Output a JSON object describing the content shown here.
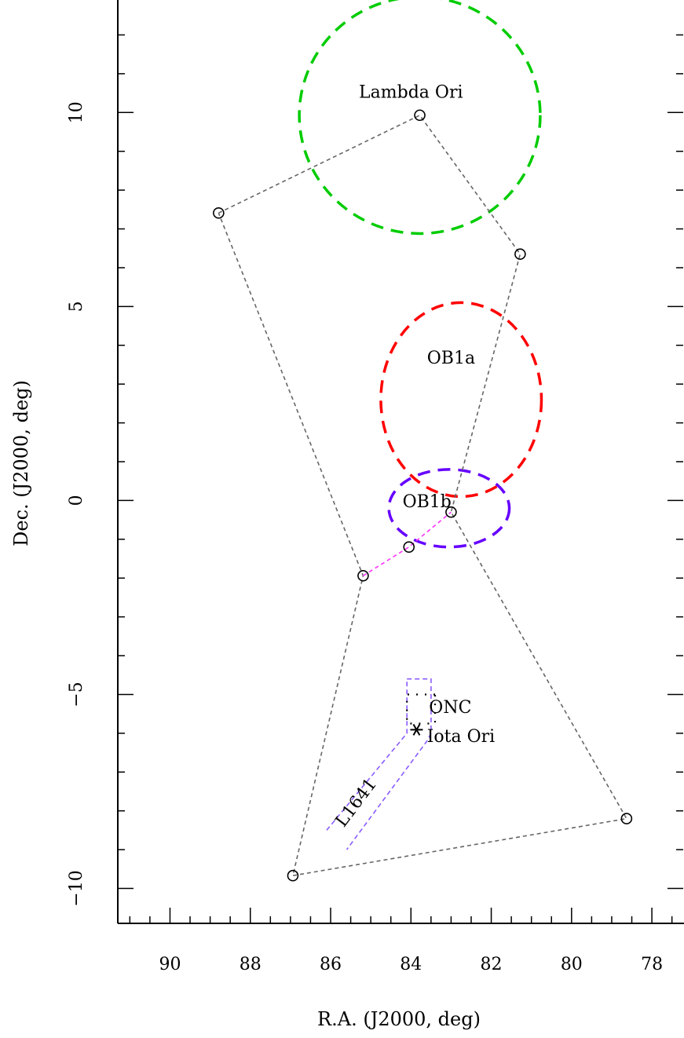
{
  "chart_data": {
    "type": "scatter",
    "xlabel": "R.A. (J2000, deg)",
    "ylabel": "Dec. (J2000, deg)",
    "xlim": [
      91.3,
      77.2
    ],
    "ylim": [
      -10.9,
      12.9
    ],
    "x_reversed": true,
    "x_ticks": [
      90,
      88,
      86,
      84,
      82,
      80,
      78
    ],
    "y_ticks": [
      10,
      5,
      0,
      -5,
      -10
    ],
    "x_tick_labels": [
      "90",
      "88",
      "86",
      "84",
      "82",
      "80",
      "78"
    ],
    "y_tick_labels": [
      "10",
      "5",
      "0",
      "−5",
      "−10"
    ],
    "x_minor_step": 0.5,
    "y_minor_step": 1,
    "grid": false,
    "stars": [
      {
        "x": 83.78,
        "y": 9.93
      },
      {
        "x": 88.79,
        "y": 7.41
      },
      {
        "x": 81.28,
        "y": 6.35
      },
      {
        "x": 85.19,
        "y": -1.94
      },
      {
        "x": 84.05,
        "y": -1.2
      },
      {
        "x": 83.0,
        "y": -0.3
      },
      {
        "x": 86.94,
        "y": -9.67
      },
      {
        "x": 78.63,
        "y": -8.2
      }
    ],
    "constellation_lines": [
      [
        [
          88.79,
          7.41
        ],
        [
          83.78,
          9.93
        ],
        [
          81.28,
          6.35
        ],
        [
          83.0,
          -0.3
        ],
        [
          78.63,
          -8.2
        ],
        [
          86.94,
          -9.67
        ],
        [
          85.19,
          -1.94
        ],
        [
          88.79,
          7.41
        ]
      ]
    ],
    "belt_line": [
      [
        85.19,
        -1.94
      ],
      [
        84.05,
        -1.2
      ],
      [
        83.0,
        -0.3
      ]
    ],
    "regions": [
      {
        "label": "Lambda Ori",
        "shape": "ellipse",
        "cx": 83.78,
        "cy": 9.93,
        "rx": 3.0,
        "ry": 3.05,
        "color": "#00cc00"
      },
      {
        "label": "OB1a",
        "shape": "ellipse",
        "cx": 82.75,
        "cy": 2.6,
        "rx": 2.0,
        "ry": 2.5,
        "color": "#ff0000"
      },
      {
        "label": "OB1b",
        "shape": "ellipse",
        "cx": 83.05,
        "cy": -0.2,
        "rx": 1.5,
        "ry": 1.0,
        "color": "#6600ff"
      }
    ],
    "field_outline": [
      [
        84.1,
        -4.6
      ],
      [
        83.5,
        -4.6
      ],
      [
        83.5,
        -6.0
      ],
      [
        83.6,
        -6.2
      ],
      [
        85.6,
        -9.0
      ]
    ],
    "field_outline_2": [
      [
        86.1,
        -8.5
      ],
      [
        84.1,
        -6.0
      ],
      [
        84.1,
        -4.6
      ]
    ],
    "field_outline_color": "#8a5cff",
    "onc_box": [
      [
        83.4,
        -5.0
      ],
      [
        84.1,
        -5.0
      ],
      [
        84.1,
        -5.75
      ],
      [
        83.4,
        -5.75
      ]
    ],
    "iota_ori": {
      "x": 83.86,
      "y": -5.91
    },
    "labels": [
      {
        "key": "lambda_ori",
        "text": "Lambda Ori",
        "x": 84.0,
        "y": 10.5
      },
      {
        "key": "ob1a",
        "text": "OB1a",
        "x": 83.0,
        "y": 3.65
      },
      {
        "key": "ob1b",
        "text": "OB1b",
        "x": 83.6,
        "y": -0.05
      },
      {
        "key": "onc",
        "text": "ONC",
        "x": 83.2,
        "y": -5.35
      },
      {
        "key": "iota_ori",
        "text": "Iota Ori",
        "x": 82.3,
        "y": -6.1
      },
      {
        "key": "l1641",
        "text": "L1641",
        "x": 85.35,
        "y": -7.8
      }
    ]
  }
}
